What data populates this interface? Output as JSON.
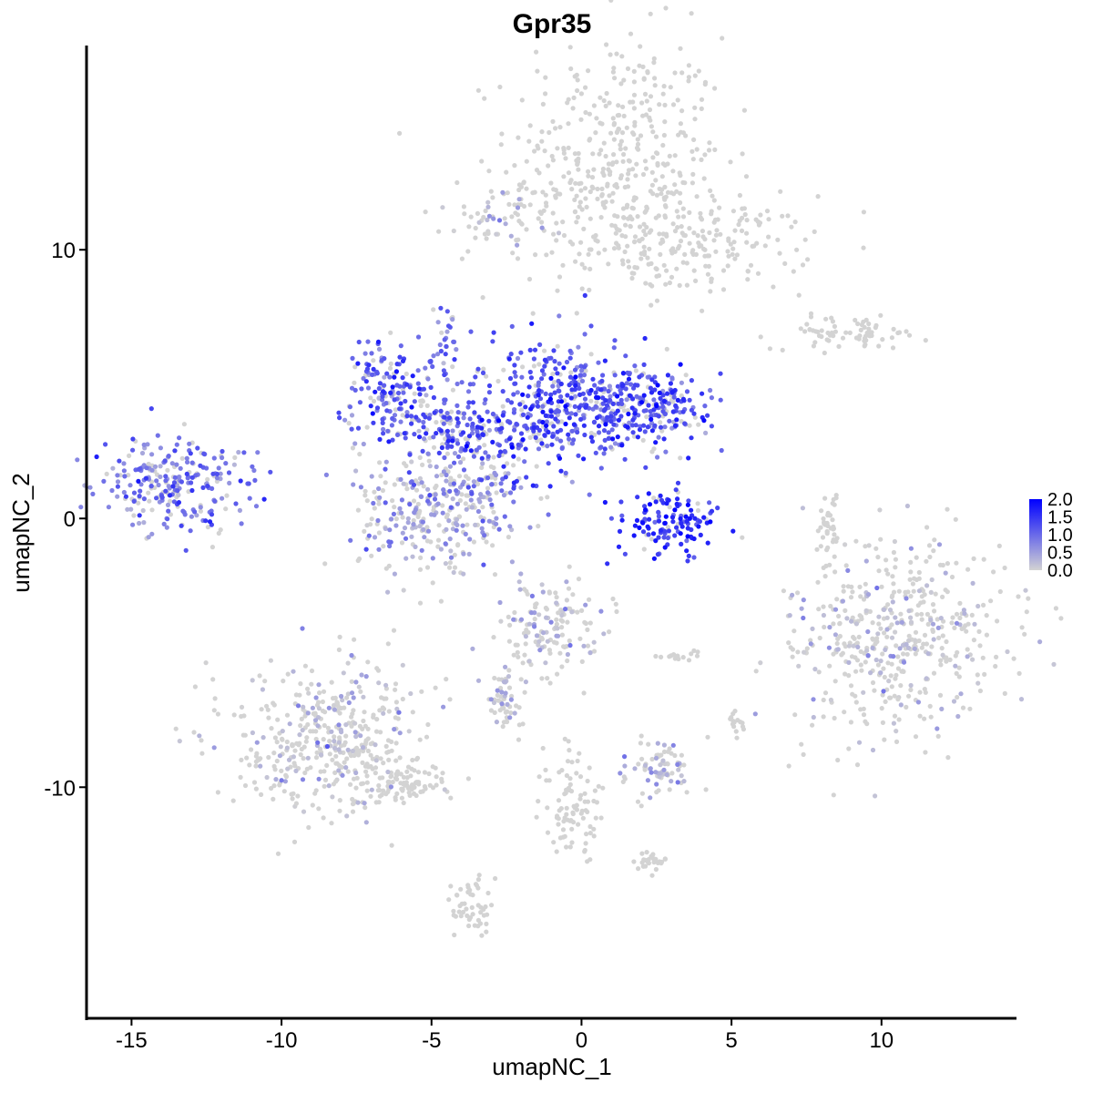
{
  "chart_data": {
    "type": "scatter",
    "title": "Gpr35",
    "xlabel": "umapNC_1",
    "ylabel": "umapNC_2",
    "xlim": [
      -16.5,
      14.5
    ],
    "ylim": [
      -18.6,
      17.6
    ],
    "x_ticks": [
      -15,
      -10,
      -5,
      0,
      5,
      10
    ],
    "x_tick_labels": [
      "-15",
      "-10",
      "-5",
      "0",
      "5",
      "10"
    ],
    "y_ticks": [
      -10,
      0,
      10
    ],
    "y_tick_labels": [
      "-10",
      "0",
      "10"
    ],
    "grid": false,
    "legend": {
      "placement": "right",
      "type": "colorbar",
      "min": 0.0,
      "max": 2.0,
      "low_color": "#d3d3d3",
      "high_color": "#0000ff",
      "ticks": [
        0.0,
        0.5,
        1.0,
        1.5,
        2.0
      ],
      "tick_labels": [
        "0.0",
        "0.5",
        "1.0",
        "1.5",
        "2.0"
      ]
    },
    "clusters": [
      {
        "cx": 1.2,
        "cy": 13.2,
        "sx": 1.8,
        "sy": 2.4,
        "expr": 0.0,
        "n": 420
      },
      {
        "cx": 4.0,
        "cy": 10.2,
        "sx": 1.8,
        "sy": 0.9,
        "expr": 0.0,
        "n": 180
      },
      {
        "cx": -2.5,
        "cy": 11.2,
        "sx": 0.9,
        "sy": 0.6,
        "expr": 0.05,
        "n": 70
      },
      {
        "cx": 9.0,
        "cy": 6.9,
        "sx": 1.3,
        "sy": 0.3,
        "expr": 0.0,
        "n": 70
      },
      {
        "cx": -13.5,
        "cy": 1.3,
        "sx": 1.3,
        "sy": 0.9,
        "expr": 0.9,
        "n": 260
      },
      {
        "cx": -6.5,
        "cy": 4.8,
        "sx": 0.8,
        "sy": 0.9,
        "expr": 1.1,
        "n": 150
      },
      {
        "cx": -4.0,
        "cy": 3.3,
        "sx": 1.2,
        "sy": 0.8,
        "expr": 1.1,
        "n": 180
      },
      {
        "cx": -4.8,
        "cy": 0.4,
        "sx": 1.4,
        "sy": 1.2,
        "expr": 0.45,
        "n": 300
      },
      {
        "cx": -1.0,
        "cy": 4.2,
        "sx": 1.5,
        "sy": 1.3,
        "expr": 1.2,
        "n": 380
      },
      {
        "cx": 2.0,
        "cy": 4.0,
        "sx": 1.1,
        "sy": 0.7,
        "expr": 1.2,
        "n": 250
      },
      {
        "cx": -4.6,
        "cy": 6.5,
        "sx": 0.3,
        "sy": 0.7,
        "expr": 0.8,
        "n": 30
      },
      {
        "cx": -3.6,
        "cy": 1.2,
        "sx": 0.9,
        "sy": 0.3,
        "expr": 0.9,
        "n": 50
      },
      {
        "cx": 3.0,
        "cy": -0.2,
        "sx": 0.9,
        "sy": 0.6,
        "expr": 1.5,
        "n": 130
      },
      {
        "cx": 10.5,
        "cy": -4.4,
        "sx": 1.8,
        "sy": 1.9,
        "expr": 0.02,
        "n": 480
      },
      {
        "cx": 8.3,
        "cy": -0.2,
        "sx": 0.2,
        "sy": 0.7,
        "expr": 0.0,
        "n": 40
      },
      {
        "cx": -8.4,
        "cy": -8.3,
        "sx": 1.6,
        "sy": 1.5,
        "expr": 0.02,
        "n": 420
      },
      {
        "cx": -6.0,
        "cy": -9.8,
        "sx": 0.9,
        "sy": 0.4,
        "expr": 0.0,
        "n": 90
      },
      {
        "cx": -3.7,
        "cy": -14.5,
        "sx": 0.3,
        "sy": 0.6,
        "expr": 0.0,
        "n": 50
      },
      {
        "cx": -1.2,
        "cy": -4.2,
        "sx": 0.8,
        "sy": 1.0,
        "expr": 0.2,
        "n": 150
      },
      {
        "cx": -2.6,
        "cy": -6.8,
        "sx": 0.3,
        "sy": 0.5,
        "expr": 0.1,
        "n": 50
      },
      {
        "cx": 2.6,
        "cy": -9.3,
        "sx": 0.6,
        "sy": 0.5,
        "expr": 0.2,
        "n": 80
      },
      {
        "cx": -0.3,
        "cy": -10.8,
        "sx": 0.5,
        "sy": 1.2,
        "expr": 0.0,
        "n": 90
      },
      {
        "cx": 2.3,
        "cy": -12.7,
        "sx": 0.3,
        "sy": 0.2,
        "expr": 0.0,
        "n": 30
      },
      {
        "cx": 5.1,
        "cy": -7.6,
        "sx": 0.15,
        "sy": 0.3,
        "expr": 0.0,
        "n": 15
      },
      {
        "cx": 3.2,
        "cy": -5.1,
        "sx": 0.4,
        "sy": 0.1,
        "expr": 0.0,
        "n": 15
      }
    ]
  }
}
